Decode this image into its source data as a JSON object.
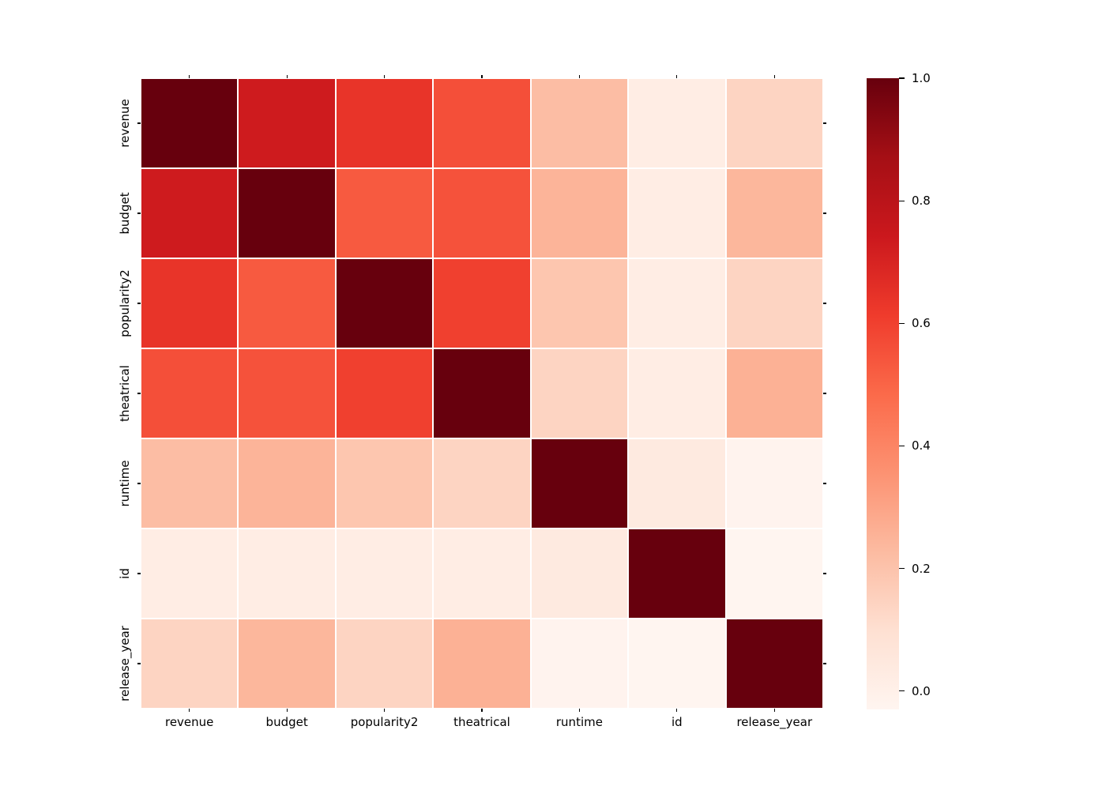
{
  "figure": {
    "background": "#ffffff",
    "text_color": "#000000"
  },
  "chart_data": {
    "type": "heatmap",
    "title": "",
    "xlabel": "",
    "ylabel": "",
    "categories": [
      "revenue",
      "budget",
      "popularity2",
      "theatrical",
      "runtime",
      "id",
      "release_year"
    ],
    "matrix": [
      [
        1.0,
        0.73,
        0.64,
        0.56,
        0.22,
        0.02,
        0.14
      ],
      [
        0.73,
        1.0,
        0.53,
        0.55,
        0.25,
        0.02,
        0.24
      ],
      [
        0.64,
        0.53,
        1.0,
        0.6,
        0.19,
        0.02,
        0.14
      ],
      [
        0.56,
        0.55,
        0.6,
        1.0,
        0.14,
        0.02,
        0.26
      ],
      [
        0.22,
        0.25,
        0.19,
        0.14,
        1.0,
        0.04,
        -0.02
      ],
      [
        0.02,
        0.02,
        0.02,
        0.02,
        0.04,
        1.0,
        -0.03
      ],
      [
        0.14,
        0.24,
        0.14,
        0.26,
        -0.02,
        -0.03,
        1.0
      ]
    ],
    "vmin": -0.03,
    "vmax": 1.0,
    "grid": false,
    "cell_gap_color": "#ffffff",
    "colormap": {
      "name": "Reds",
      "anchors": [
        "#fff5f0",
        "#fee0d2",
        "#fcbba1",
        "#fc9272",
        "#fb6a4a",
        "#ef3b2c",
        "#cb181d",
        "#a50f15",
        "#67000d"
      ]
    },
    "colorbar": {
      "position": "right",
      "tick_labels": [
        "1.0",
        "0.8",
        "0.6",
        "0.4",
        "0.2",
        "0.0"
      ],
      "tick_values": [
        1.0,
        0.8,
        0.6,
        0.4,
        0.2,
        0.0
      ]
    }
  }
}
